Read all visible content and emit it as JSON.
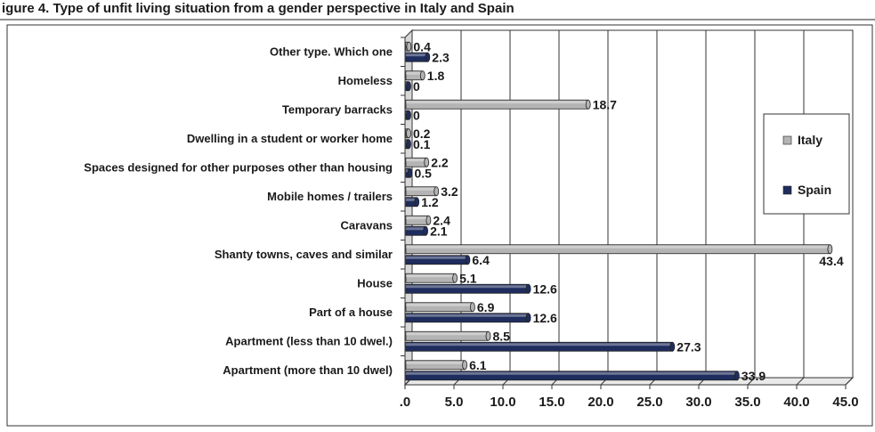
{
  "header": {
    "text": "igure 4. Type of unfit living situation from a gender perspective in Italy and Spain"
  },
  "chart_data": {
    "type": "bar",
    "orientation": "horizontal",
    "categories": [
      "Other type. Which one",
      "Homeless",
      "Temporary barracks",
      "Dwelling in a student or worker home",
      "Spaces designed for other purposes other than housing",
      "Mobile homes / trailers",
      "Caravans",
      "Shanty towns, caves and similar",
      "House",
      "Part of a house",
      "Apartment (less than 10 dwel.)",
      "Apartment  (more than 10 dwel)"
    ],
    "series": [
      {
        "name": "Italy",
        "values": [
          0.4,
          1.8,
          18.7,
          0.2,
          2.2,
          3.2,
          2.4,
          43.4,
          5.1,
          6.9,
          8.5,
          6.1
        ],
        "labels": [
          "0.4",
          "1.8",
          "18.7",
          "0.2",
          "2.2",
          "3.2",
          "2.4",
          "43.4",
          "5.1",
          "6.9",
          "8.5",
          "6.1"
        ]
      },
      {
        "name": "Spain",
        "values": [
          2.3,
          0,
          0,
          0.1,
          0.5,
          1.2,
          2.1,
          6.4,
          12.6,
          12.6,
          27.3,
          33.9
        ],
        "labels": [
          "2.3",
          "0",
          "0",
          "0.1",
          "0.5",
          "1.2",
          "2.1",
          "6.4",
          "12.6",
          "12.6",
          "27.3",
          "33.9"
        ]
      }
    ],
    "xlim": [
      0,
      45
    ],
    "xticks": [
      0,
      5,
      10,
      15,
      20,
      25,
      30,
      35,
      40,
      45
    ],
    "xtick_labels": [
      ".0",
      "5.0",
      "10.0",
      "15.0",
      "20.0",
      "25.0",
      "30.0",
      "35.0",
      "40.0",
      "45.0"
    ],
    "grid": true,
    "legend_position": "right",
    "colors": {
      "Italy": "#b4b4b4",
      "Spain": "#1f2d5e"
    },
    "title": "",
    "xlabel": "",
    "ylabel": ""
  }
}
